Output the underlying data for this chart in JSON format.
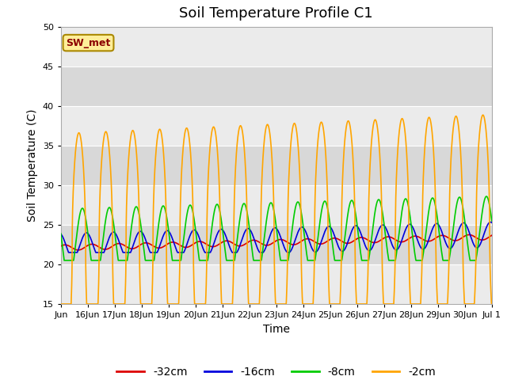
{
  "title": "Soil Temperature Profile C1",
  "xlabel": "Time",
  "ylabel": "Soil Temperature (C)",
  "ylim": [
    15,
    50
  ],
  "yticks": [
    15,
    20,
    25,
    30,
    35,
    40,
    45,
    50
  ],
  "legend_label": "SW_met",
  "legend_box_color": "#FFEE99",
  "legend_box_edge": "#AA8800",
  "series_labels": [
    "-32cm",
    "-16cm",
    "-8cm",
    "-2cm"
  ],
  "series_colors": [
    "#DD0000",
    "#0000DD",
    "#00CC00",
    "#FFA500"
  ],
  "bg_color_light": "#EBEBEB",
  "bg_color_dark": "#D8D8D8",
  "grid_color": "#FFFFFF",
  "title_fontsize": 13,
  "tick_fontsize": 8,
  "label_fontsize": 10,
  "num_days": 16,
  "n_per_day": 144
}
